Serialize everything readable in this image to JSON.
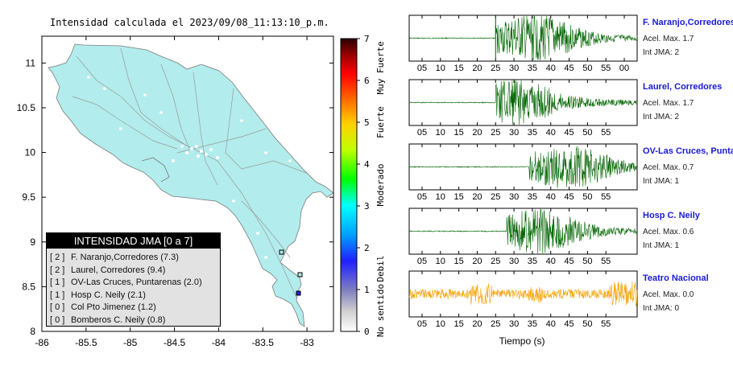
{
  "map": {
    "title": "Intensidad calculada el 2023/09/08_11:13:10_p.m.",
    "x_ticks": [
      "-86",
      "-85.5",
      "-85",
      "-84.5",
      "-84",
      "-83.5",
      "-83"
    ],
    "y_ticks": [
      "11",
      "10.5",
      "10",
      "9.5",
      "9",
      "8.5",
      "8"
    ],
    "xlim": [
      -86,
      -82.7
    ],
    "ylim": [
      8,
      11.3
    ],
    "land_color": "#b2ecec"
  },
  "colorbar": {
    "ticks": [
      "0",
      "1",
      "2",
      "3",
      "4",
      "5",
      "6",
      "7"
    ],
    "labels": [
      "No sentido",
      "Debil",
      "Moderado",
      "Fuerte",
      "Muy Fuerte"
    ]
  },
  "legend": {
    "title": "INTENSIDAD JMA [0 a 7]",
    "items": [
      {
        "code": "[ 2 ]",
        "text": "F. Naranjo,Corredores (7.3)"
      },
      {
        "code": "[ 2 ]",
        "text": "Laurel, Corredores (9.4)"
      },
      {
        "code": "[ 1 ]",
        "text": "OV-Las Cruces, Puntarenas (2.0)"
      },
      {
        "code": "[ 1 ]",
        "text": "Hosp C. Neily (2.1)"
      },
      {
        "code": "[ 0 ]",
        "text": "Col Pto Jimenez (1.2)"
      },
      {
        "code": "[ 0 ]",
        "text": "Bomberos C. Neily (0.8)"
      }
    ]
  },
  "traces": {
    "xlabel": "Tiempo (s)",
    "x_ticks": [
      [
        "05",
        "10",
        "15",
        "20",
        "25",
        "30",
        "35",
        "40",
        "45",
        "50",
        "55",
        "00"
      ],
      [
        "05",
        "10",
        "15",
        "20",
        "25",
        "30",
        "35",
        "40",
        "45",
        "50",
        "55"
      ],
      [
        "05",
        "10",
        "15",
        "20",
        "25",
        "30",
        "35",
        "40",
        "45",
        "50",
        "55"
      ],
      [
        "05",
        "10",
        "15",
        "20",
        "25",
        "30",
        "35",
        "40",
        "45",
        "50",
        "55"
      ],
      [
        "05",
        "10",
        "15",
        "20",
        "25",
        "30",
        "35",
        "40",
        "45",
        "50",
        "55"
      ]
    ],
    "stations": [
      {
        "name": "F. Naranjo,Corredores",
        "acc": "Acel. Max. 1.7",
        "jma": "Int JMA: 2",
        "color": "#006400"
      },
      {
        "name": "Laurel, Corredores",
        "acc": "Acel. Max. 1.7",
        "jma": "Int JMA: 2",
        "color": "#006400"
      },
      {
        "name": "OV-Las Cruces, Puntar",
        "acc": "Acel. Max. 0.7",
        "jma": "Int JMA: 1",
        "color": "#006400"
      },
      {
        "name": "Hosp C. Neily",
        "acc": "Acel. Max. 0.6",
        "jma": "Int JMA: 1",
        "color": "#006400"
      },
      {
        "name": "Teatro Nacional",
        "acc": "Acel. Max. 0.0",
        "jma": "Int JMA: 0",
        "color": "#f5a000"
      }
    ]
  },
  "chart_data": [
    {
      "type": "scatter",
      "title": "Intensidad calculada el 2023/09/08_11:13:10_p.m.",
      "xlim": [
        -86,
        -82.7
      ],
      "ylim": [
        8,
        11.3
      ],
      "series": [
        {
          "name": "INTENSIDAD JMA [0 a 7]",
          "points": [
            {
              "x": -82.95,
              "y": 8.6,
              "value": 2
            },
            {
              "x": -83.15,
              "y": 8.9,
              "value": 1
            }
          ]
        }
      ],
      "colorbar_range": [
        0,
        7
      ],
      "colorbar_labels": [
        "No sentido",
        "Debil",
        "Moderado",
        "Fuerte",
        "Muy Fuerte"
      ]
    },
    {
      "type": "line",
      "xlabel": "Tiempo (s)",
      "panels": [
        {
          "name": "F. Naranjo,Corredores",
          "onset_s": 25,
          "peak_s": 36,
          "acel_max": 1.7,
          "int_jma": 2
        },
        {
          "name": "Laurel, Corredores",
          "onset_s": 25,
          "peak_s": 30,
          "acel_max": 1.7,
          "int_jma": 2
        },
        {
          "name": "OV-Las Cruces, Puntar",
          "onset_s": 34,
          "peak_s": 45,
          "acel_max": 0.7,
          "int_jma": 1
        },
        {
          "name": "Hosp C. Neily",
          "onset_s": 28,
          "peak_s": 37,
          "acel_max": 0.6,
          "int_jma": 1
        },
        {
          "name": "Teatro Nacional",
          "onset_s": 0,
          "peak_s": 21,
          "acel_max": 0.0,
          "int_jma": 0
        }
      ]
    }
  ]
}
